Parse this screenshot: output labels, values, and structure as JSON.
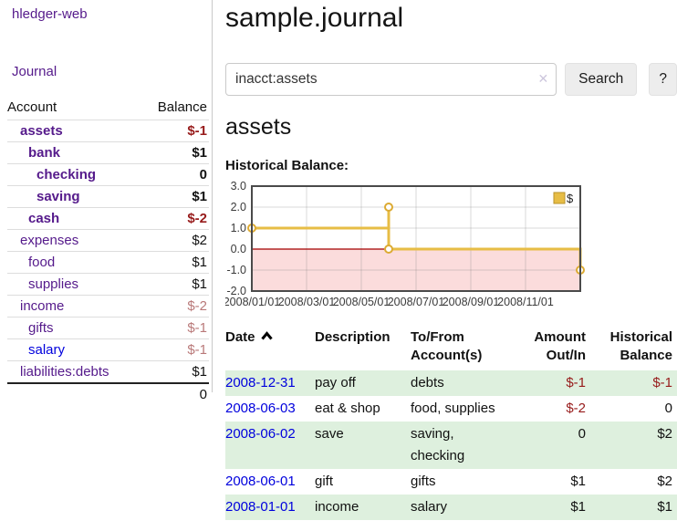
{
  "sidebar": {
    "brand": "hledger-web",
    "nav_journal": "Journal",
    "accounts": {
      "headers": {
        "account": "Account",
        "balance": "Balance"
      },
      "rows": [
        {
          "name": "assets",
          "level": 1,
          "bold": true,
          "balance": "$-1",
          "balance_color": "negative-strong"
        },
        {
          "name": "bank",
          "level": 2,
          "bold": true,
          "balance": "$1",
          "balance_color": "normal"
        },
        {
          "name": "checking",
          "level": 3,
          "bold": true,
          "balance": "0",
          "balance_color": "normal"
        },
        {
          "name": "saving",
          "level": 3,
          "bold": true,
          "balance": "$1",
          "balance_color": "normal"
        },
        {
          "name": "cash",
          "level": 2,
          "bold": true,
          "balance": "$-2",
          "balance_color": "negative-strong"
        },
        {
          "name": "expenses",
          "level": 1,
          "bold": false,
          "balance": "$2",
          "balance_color": "normal"
        },
        {
          "name": "food",
          "level": 2,
          "bold": false,
          "balance": "$1",
          "balance_color": "normal"
        },
        {
          "name": "supplies",
          "level": 2,
          "bold": false,
          "balance": "$1",
          "balance_color": "normal"
        },
        {
          "name": "income",
          "level": 1,
          "bold": false,
          "balance": "$-2",
          "balance_color": "negative-pale"
        },
        {
          "name": "gifts",
          "level": 2,
          "bold": false,
          "balance": "$-1",
          "balance_color": "negative-pale"
        },
        {
          "name": "salary",
          "level": 2,
          "bold": false,
          "balance": "$-1",
          "balance_color": "negative-pale",
          "link_color": "blue"
        },
        {
          "name": "liabilities:debts",
          "level": 1,
          "bold": false,
          "balance": "$1",
          "balance_color": "normal"
        }
      ],
      "total": "0"
    }
  },
  "main": {
    "title": "sample.journal",
    "search": {
      "value": "inacct:assets",
      "clear_icon": "✕",
      "search_button": "Search",
      "help_button": "?"
    },
    "account_heading": "assets",
    "chart_label": "Historical Balance:",
    "register": {
      "sort": "ascending",
      "headers": {
        "date": "Date",
        "description": "Description",
        "accounts_line1": "To/From",
        "accounts_line2": "Account(s)",
        "amount_line1": "Amount",
        "amount_line2": "Out/In",
        "balance_line1": "Historical",
        "balance_line2": "Balance"
      },
      "rows": [
        {
          "date": "2008-12-31",
          "description": "pay off",
          "accounts": "debts",
          "amount": "$-1",
          "amount_negative": true,
          "balance": "$-1",
          "balance_negative": true
        },
        {
          "date": "2008-06-03",
          "description": "eat & shop",
          "accounts": "food, supplies",
          "amount": "$-2",
          "amount_negative": true,
          "balance": "0",
          "balance_negative": false
        },
        {
          "date": "2008-06-02",
          "description": "save",
          "accounts": "saving, checking",
          "amount": "0",
          "amount_negative": false,
          "balance": "$2",
          "balance_negative": false
        },
        {
          "date": "2008-06-01",
          "description": "gift",
          "accounts": "gifts",
          "amount": "$1",
          "amount_negative": false,
          "balance": "$2",
          "balance_negative": false
        },
        {
          "date": "2008-01-01",
          "description": "income",
          "accounts": "salary",
          "amount": "$1",
          "amount_negative": false,
          "balance": "$1",
          "balance_negative": false
        }
      ]
    }
  },
  "chart_data": {
    "type": "line",
    "title": "Historical Balance:",
    "series": [
      {
        "name": "$",
        "step": true,
        "points": [
          [
            "2008-01-01",
            1
          ],
          [
            "2008-06-01",
            2
          ],
          [
            "2008-06-03",
            0
          ],
          [
            "2008-12-31",
            -1
          ]
        ]
      }
    ],
    "x_ticks": [
      "2008/01/01",
      "2008/03/01",
      "2008/05/01",
      "2008/07/01",
      "2008/09/01",
      "2008/11/01"
    ],
    "x_tick_months": [
      0,
      2,
      4,
      6,
      8,
      10
    ],
    "x_range_months": [
      0,
      12
    ],
    "y_ticks": [
      "3.0",
      "2.0",
      "1.0",
      "0.0",
      "-1.0",
      "-2.0"
    ],
    "ylim": [
      -2,
      3
    ],
    "grid": true,
    "legend": {
      "label": "$",
      "position": "top-right"
    },
    "negative_region_shaded": true,
    "path_months": [
      [
        0,
        1
      ],
      [
        5,
        1
      ],
      [
        5,
        2
      ],
      [
        5,
        0
      ],
      [
        12,
        0
      ],
      [
        12,
        -1
      ]
    ],
    "marker_months": [
      [
        0,
        1
      ],
      [
        5,
        2
      ],
      [
        5,
        0
      ],
      [
        12,
        -1
      ]
    ]
  },
  "colors": {
    "accent_purple": "#551a8b",
    "link_blue": "#0000dd",
    "negative_strong": "#971b1b",
    "negative_pale": "#b97979",
    "row_stripe_green": "#def0de",
    "chart_line_gold": "#e7bd45",
    "chart_marker_stroke": "#dcaa32",
    "chart_negative_fill": "#fbdcdc",
    "chart_zero_line": "#a40000",
    "button_bg": "#ededed"
  }
}
